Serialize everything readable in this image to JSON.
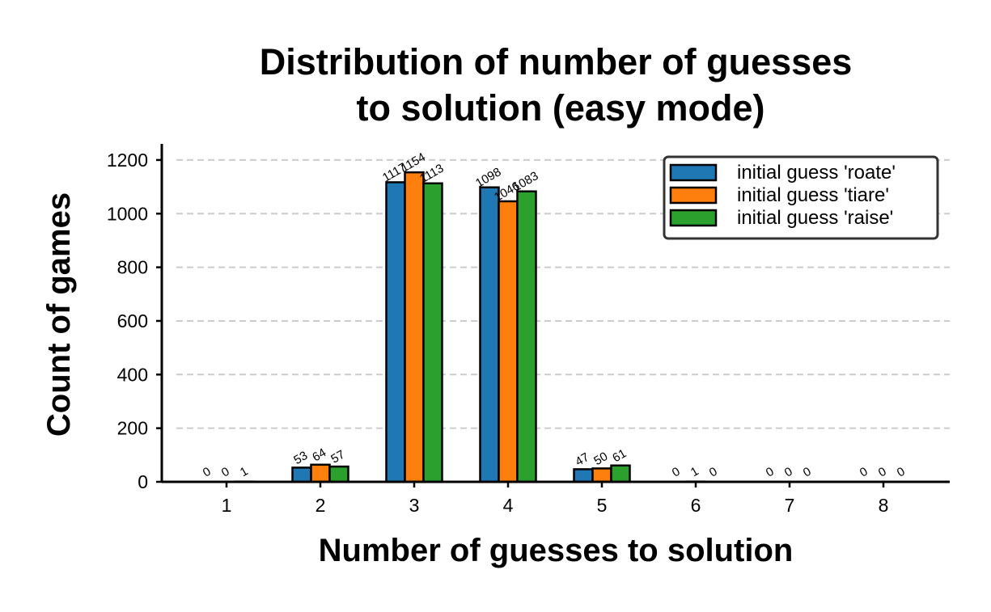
{
  "chart_data": {
    "type": "bar",
    "title": [
      "Distribution of number of guesses",
      "to solution (easy mode)"
    ],
    "xlabel": "Number of guesses to solution",
    "ylabel": "Count of games",
    "categories": [
      "1",
      "2",
      "3",
      "4",
      "5",
      "6",
      "7",
      "8"
    ],
    "ylim": [
      0,
      1260
    ],
    "yticks": [
      0,
      200,
      400,
      600,
      800,
      1000,
      1200
    ],
    "grid": "y, dashed",
    "legend_placement": "top-right",
    "series": [
      {
        "name": "initial guess 'roate'",
        "color": "#1f77b4",
        "values": [
          0,
          53,
          1117,
          1098,
          47,
          0,
          0,
          0
        ]
      },
      {
        "name": "initial guess 'tiare'",
        "color": "#ff7f0e",
        "values": [
          0,
          64,
          1154,
          1046,
          50,
          1,
          0,
          0
        ]
      },
      {
        "name": "initial guess 'raise'",
        "color": "#2ca02c",
        "values": [
          1,
          57,
          1113,
          1083,
          61,
          0,
          0,
          0
        ]
      }
    ]
  }
}
